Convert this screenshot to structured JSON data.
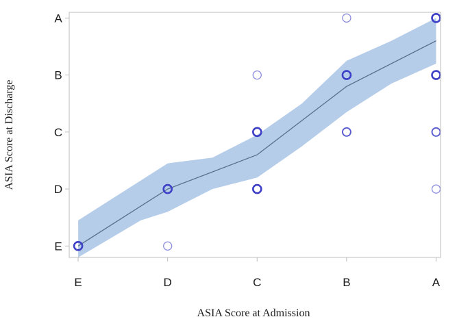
{
  "chart_data": {
    "type": "scatter",
    "title": "",
    "xlabel": "ASIA Score at Admission",
    "ylabel": "ASIA Score at Discharge",
    "x_categories": [
      "E",
      "D",
      "C",
      "B",
      "A"
    ],
    "y_categories": [
      "E",
      "D",
      "C",
      "B",
      "A"
    ],
    "x_tick_labels": [
      "E",
      "D",
      "C",
      "B",
      "A"
    ],
    "y_tick_labels": [
      "A",
      "B",
      "C",
      "D",
      "E"
    ],
    "xlim": [
      0.9,
      5.05
    ],
    "ylim": [
      0.8,
      5.1
    ],
    "grid": false,
    "legend": "none",
    "series": [
      {
        "type": "scatter",
        "points": [
          {
            "x": "E",
            "y": "E",
            "weight": "heavy"
          },
          {
            "x": "D",
            "y": "E",
            "weight": "light"
          },
          {
            "x": "D",
            "y": "D",
            "weight": "heavy"
          },
          {
            "x": "C",
            "y": "D",
            "weight": "heavy"
          },
          {
            "x": "C",
            "y": "C",
            "weight": "heavy"
          },
          {
            "x": "C",
            "y": "B",
            "weight": "light"
          },
          {
            "x": "B",
            "y": "C",
            "weight": "medium"
          },
          {
            "x": "B",
            "y": "B",
            "weight": "heavy"
          },
          {
            "x": "B",
            "y": "A",
            "weight": "light"
          },
          {
            "x": "A",
            "y": "D",
            "weight": "light"
          },
          {
            "x": "A",
            "y": "C",
            "weight": "medium"
          },
          {
            "x": "A",
            "y": "B",
            "weight": "heavy"
          },
          {
            "x": "A",
            "y": "A",
            "weight": "heavy"
          }
        ]
      },
      {
        "type": "line",
        "x": [
          1,
          2,
          3,
          4,
          5
        ],
        "y": [
          1.0,
          2.0,
          2.6,
          3.8,
          4.6
        ]
      },
      {
        "type": "band",
        "x": [
          1,
          1.7,
          2,
          2.5,
          3,
          3.5,
          4,
          4.5,
          5
        ],
        "lower": [
          0.8,
          1.45,
          1.6,
          2.0,
          2.2,
          2.75,
          3.35,
          3.85,
          4.2
        ],
        "upper": [
          1.45,
          2.15,
          2.45,
          2.55,
          2.95,
          3.5,
          4.25,
          4.6,
          5.0
        ]
      }
    ],
    "colors": {
      "band": "#a9c4e6",
      "line": "#5a6f8c",
      "marker": "#3d3fc7",
      "frame": "#bdbdbd"
    }
  }
}
